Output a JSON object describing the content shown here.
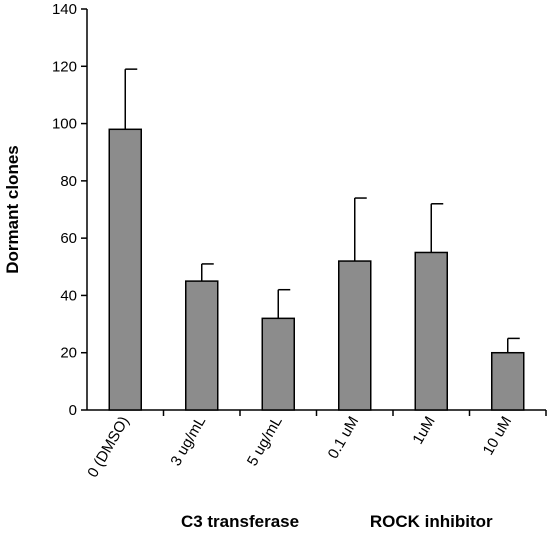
{
  "chart_data": {
    "type": "bar",
    "ylabel": "Dormant clones",
    "ylim": [
      0,
      140
    ],
    "yticks": [
      0,
      20,
      40,
      60,
      80,
      100,
      120,
      140
    ],
    "categories": [
      "0 (DMSO)",
      "3 ug/mL",
      "5 ug/mL",
      "0.1 uM",
      "1uM",
      "10 uM"
    ],
    "values": [
      98,
      45,
      32,
      52,
      55,
      20
    ],
    "errors": [
      21,
      6,
      10,
      22,
      17,
      5
    ],
    "groups": [
      {
        "label": "C3 transferase",
        "categories": [
          "3 ug/mL",
          "5 ug/mL"
        ]
      },
      {
        "label": "ROCK inhibitor",
        "categories": [
          "0.1 uM",
          "1uM",
          "10 uM"
        ]
      }
    ],
    "grid": false,
    "legend": "none",
    "bar_color": "#8c8c8c",
    "bar_stroke": "#000000"
  }
}
